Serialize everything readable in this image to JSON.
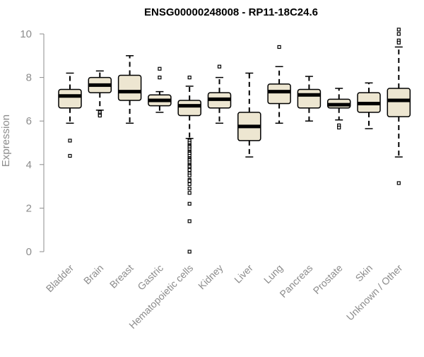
{
  "chart_data": {
    "type": "boxplot",
    "title": "ENSG00000248008 - RP11-18C24.6",
    "xlabel": "",
    "ylabel": "Expression",
    "ylim": [
      0,
      10
    ],
    "yticks": [
      0,
      2,
      4,
      6,
      8,
      10
    ],
    "grid": false,
    "legend": "none",
    "box_fill": "#ede6d1",
    "box_stroke": "#000000",
    "categories": [
      "Bladder",
      "Brain",
      "Breast",
      "Gastric",
      "Hematopoietic cells",
      "Kidney",
      "Liver",
      "Lung",
      "Pancreas",
      "Prostate",
      "Skin",
      "Unknown / Other"
    ],
    "boxes": [
      {
        "category": "Bladder",
        "whisker_low": 5.9,
        "q1": 6.6,
        "median": 7.15,
        "q3": 7.45,
        "whisker_high": 8.2,
        "outliers": [
          5.1,
          4.4
        ]
      },
      {
        "category": "Brain",
        "whisker_low": 6.5,
        "q1": 7.3,
        "median": 7.65,
        "q3": 8.0,
        "whisker_high": 8.3,
        "outliers": [
          6.4,
          6.3,
          6.25
        ]
      },
      {
        "category": "Breast",
        "whisker_low": 5.9,
        "q1": 6.95,
        "median": 7.35,
        "q3": 8.1,
        "whisker_high": 9.0,
        "outliers": []
      },
      {
        "category": "Gastric",
        "whisker_low": 6.4,
        "q1": 6.7,
        "median": 6.95,
        "q3": 7.2,
        "whisker_high": 7.35,
        "outliers": [
          8.4,
          8.0
        ]
      },
      {
        "category": "Hematopoietic cells",
        "whisker_low": 5.2,
        "q1": 6.25,
        "median": 6.7,
        "q3": 6.95,
        "whisker_high": 7.6,
        "outliers": [
          8.0,
          5.1,
          5.0,
          4.9,
          4.85,
          4.8,
          4.7,
          4.6,
          4.55,
          4.5,
          4.4,
          4.3,
          4.25,
          4.2,
          4.1,
          4.0,
          3.95,
          3.9,
          3.8,
          3.75,
          3.6,
          3.5,
          3.3,
          3.25,
          3.1,
          2.9,
          2.7,
          2.2,
          1.4,
          0.0
        ]
      },
      {
        "category": "Kidney",
        "whisker_low": 5.9,
        "q1": 6.6,
        "median": 7.0,
        "q3": 7.3,
        "whisker_high": 8.0,
        "outliers": [
          8.5
        ]
      },
      {
        "category": "Liver",
        "whisker_low": 4.35,
        "q1": 5.1,
        "median": 5.75,
        "q3": 6.4,
        "whisker_high": 8.2,
        "outliers": []
      },
      {
        "category": "Lung",
        "whisker_low": 5.9,
        "q1": 6.8,
        "median": 7.35,
        "q3": 7.7,
        "whisker_high": 8.5,
        "outliers": [
          9.4
        ]
      },
      {
        "category": "Pancreas",
        "whisker_low": 6.0,
        "q1": 6.6,
        "median": 7.2,
        "q3": 7.45,
        "whisker_high": 8.05,
        "outliers": []
      },
      {
        "category": "Prostate",
        "whisker_low": 6.05,
        "q1": 6.6,
        "median": 6.75,
        "q3": 7.0,
        "whisker_high": 7.5,
        "outliers": [
          5.8,
          5.7
        ]
      },
      {
        "category": "Skin",
        "whisker_low": 5.65,
        "q1": 6.4,
        "median": 6.8,
        "q3": 7.3,
        "whisker_high": 7.75,
        "outliers": []
      },
      {
        "category": "Unknown / Other",
        "whisker_low": 4.35,
        "q1": 6.2,
        "median": 6.95,
        "q3": 7.5,
        "whisker_high": 9.4,
        "outliers": [
          10.2,
          10.0,
          9.7,
          9.6,
          3.15
        ]
      }
    ]
  }
}
